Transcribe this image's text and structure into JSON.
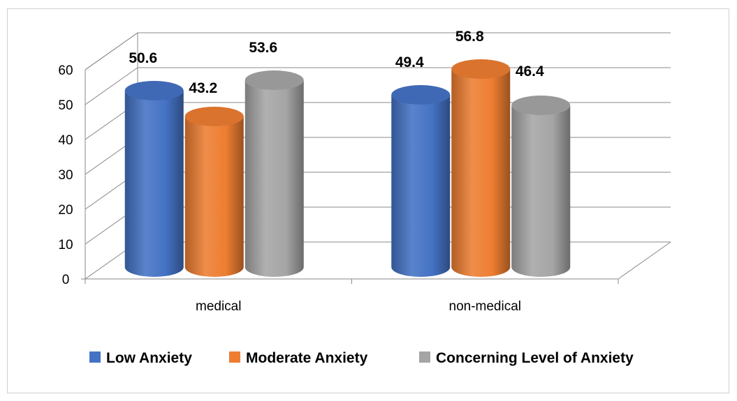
{
  "chart_data": {
    "type": "bar",
    "categories": [
      "medical",
      "non-medical"
    ],
    "series": [
      {
        "name": "Low Anxiety",
        "values": [
          50.6,
          49.4
        ],
        "color": "#4472C4"
      },
      {
        "name": "Moderate Anxiety",
        "values": [
          43.2,
          56.8
        ],
        "color": "#ED7D31"
      },
      {
        "name": "Concerning Level of Anxiety",
        "values": [
          53.6,
          46.4
        ],
        "color": "#A5A5A5"
      }
    ],
    "ylim": [
      0,
      60
    ],
    "yticks": [
      0,
      10,
      20,
      30,
      40,
      50,
      60
    ],
    "title": "",
    "xlabel": "",
    "ylabel": "",
    "grid": true,
    "legend_position": "bottom",
    "style": "3d-cylinder"
  }
}
